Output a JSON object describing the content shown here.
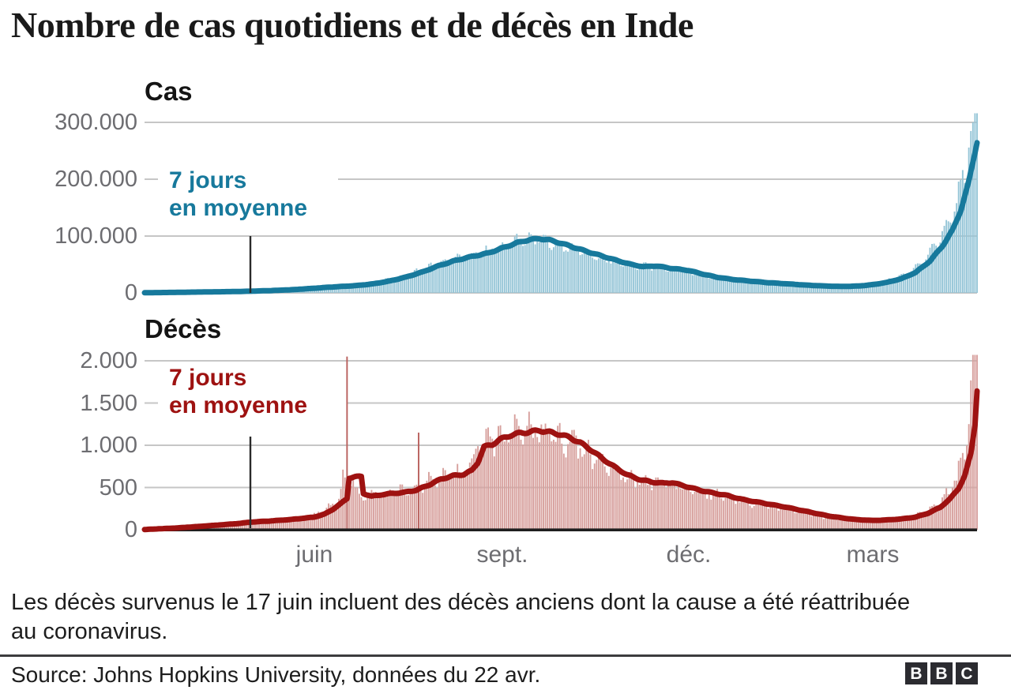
{
  "header": {
    "title": "Nombre de cas quotidiens et de décès en Inde"
  },
  "footer": {
    "note": "Les décès survenus le 17 juin incluent des décès anciens dont la cause a été réattribuée au coronavirus.",
    "source": "Source: Johns Hopkins University, données du 22 avr.",
    "logo_letters": [
      "B",
      "B",
      "C"
    ]
  },
  "axis": {
    "month_labels": [
      {
        "label": "juin",
        "day": 83
      },
      {
        "label": "sept.",
        "day": 175
      },
      {
        "label": "déc.",
        "day": 266
      },
      {
        "label": "mars",
        "day": 356
      }
    ]
  },
  "chart_data": [
    {
      "id": "cases",
      "type": "bar+line",
      "title": "Cas",
      "annotation_line1": "7 jours",
      "annotation_line2": "en moyenne",
      "line_color": "#17799c",
      "bar_color": "#95c5d7",
      "special_color": "#b9605c",
      "y_ticks": [
        {
          "value": 300000,
          "label": "300.000"
        },
        {
          "value": 200000,
          "label": "200.000"
        },
        {
          "value": 100000,
          "label": "100.000"
        },
        {
          "value": 0,
          "label": "0"
        }
      ],
      "ylim": [
        0,
        315000
      ],
      "avg_points": [
        [
          0,
          300
        ],
        [
          15,
          900
        ],
        [
          30,
          1700
        ],
        [
          45,
          2400
        ],
        [
          52,
          3000
        ],
        [
          62,
          4100
        ],
        [
          72,
          5600
        ],
        [
          83,
          8200
        ],
        [
          90,
          10000
        ],
        [
          97,
          11500
        ],
        [
          104,
          13000
        ],
        [
          112,
          16000
        ],
        [
          120,
          21000
        ],
        [
          128,
          28000
        ],
        [
          136,
          37000
        ],
        [
          144,
          48000
        ],
        [
          152,
          57000
        ],
        [
          160,
          64000
        ],
        [
          168,
          70000
        ],
        [
          175,
          79000
        ],
        [
          182,
          88000
        ],
        [
          188,
          93500
        ],
        [
          193,
          95500
        ],
        [
          198,
          93000
        ],
        [
          204,
          87000
        ],
        [
          210,
          80000
        ],
        [
          217,
          72000
        ],
        [
          224,
          64500
        ],
        [
          231,
          57000
        ],
        [
          238,
          50000
        ],
        [
          244,
          46000
        ],
        [
          250,
          47500
        ],
        [
          257,
          43500
        ],
        [
          266,
          39500
        ],
        [
          273,
          33000
        ],
        [
          280,
          27500
        ],
        [
          288,
          23500
        ],
        [
          296,
          20800
        ],
        [
          305,
          18000
        ],
        [
          314,
          16000
        ],
        [
          323,
          13800
        ],
        [
          332,
          12200
        ],
        [
          341,
          11300
        ],
        [
          349,
          12000
        ],
        [
          356,
          14500
        ],
        [
          363,
          18500
        ],
        [
          370,
          25000
        ],
        [
          377,
          36000
        ],
        [
          384,
          56000
        ],
        [
          390,
          82000
        ],
        [
          395,
          110000
        ],
        [
          399,
          145000
        ],
        [
          403,
          195000
        ],
        [
          407,
          267000
        ]
      ],
      "bar_lead_days": 3.5,
      "bar_tail_point": [
        411,
        335000
      ],
      "bar_cap": 316000,
      "weekly_amp": 0.09,
      "noise_amp": 0.07,
      "special_bars": []
    },
    {
      "id": "deaths",
      "type": "bar+line",
      "title": "Décès",
      "annotation_line1": "7 jours",
      "annotation_line2": "en moyenne",
      "line_color": "#9e1211",
      "bar_color": "#d7a09d",
      "special_color": "#b9605c",
      "y_ticks": [
        {
          "value": 2000,
          "label": "2.000"
        },
        {
          "value": 1500,
          "label": "1.500"
        },
        {
          "value": 1000,
          "label": "1.000"
        },
        {
          "value": 500,
          "label": "500"
        },
        {
          "value": 0,
          "label": "0"
        }
      ],
      "ylim": [
        0,
        2060
      ],
      "avg_points": [
        [
          0,
          3
        ],
        [
          15,
          20
        ],
        [
          30,
          45
        ],
        [
          45,
          72
        ],
        [
          52,
          90
        ],
        [
          62,
          105
        ],
        [
          72,
          122
        ],
        [
          83,
          150
        ],
        [
          88,
          185
        ],
        [
          92,
          240
        ],
        [
          96,
          310
        ],
        [
          99,
          370
        ],
        [
          100,
          615
        ],
        [
          103,
          625
        ],
        [
          106,
          632
        ],
        [
          107,
          430
        ],
        [
          111,
          395
        ],
        [
          116,
          415
        ],
        [
          121,
          430
        ],
        [
          127,
          442
        ],
        [
          133,
          470
        ],
        [
          139,
          530
        ],
        [
          145,
          600
        ],
        [
          151,
          640
        ],
        [
          156,
          655
        ],
        [
          160,
          700
        ],
        [
          163,
          800
        ],
        [
          166,
          980
        ],
        [
          170,
          1010
        ],
        [
          174,
          1070
        ],
        [
          179,
          1120
        ],
        [
          184,
          1145
        ],
        [
          189,
          1160
        ],
        [
          193,
          1175
        ],
        [
          198,
          1155
        ],
        [
          203,
          1130
        ],
        [
          208,
          1090
        ],
        [
          213,
          1030
        ],
        [
          218,
          950
        ],
        [
          224,
          840
        ],
        [
          230,
          740
        ],
        [
          236,
          650
        ],
        [
          242,
          595
        ],
        [
          248,
          565
        ],
        [
          254,
          550
        ],
        [
          258,
          560
        ],
        [
          262,
          530
        ],
        [
          266,
          505
        ],
        [
          272,
          465
        ],
        [
          278,
          435
        ],
        [
          285,
          405
        ],
        [
          292,
          360
        ],
        [
          299,
          330
        ],
        [
          306,
          300
        ],
        [
          313,
          270
        ],
        [
          320,
          235
        ],
        [
          327,
          200
        ],
        [
          334,
          165
        ],
        [
          341,
          140
        ],
        [
          348,
          120
        ],
        [
          356,
          110
        ],
        [
          363,
          116
        ],
        [
          370,
          128
        ],
        [
          377,
          150
        ],
        [
          383,
          195
        ],
        [
          389,
          265
        ],
        [
          394,
          370
        ],
        [
          398,
          490
        ],
        [
          401,
          640
        ],
        [
          404,
          900
        ],
        [
          406,
          1250
        ],
        [
          407,
          1660
        ]
      ],
      "bar_lead_days": 3.5,
      "bar_tail_point": [
        411,
        2350
      ],
      "bar_cap": 2070,
      "weekly_amp": 0.11,
      "noise_amp": 0.1,
      "special_bars": [
        [
          99,
          2050
        ],
        [
          134,
          1150
        ]
      ]
    }
  ]
}
